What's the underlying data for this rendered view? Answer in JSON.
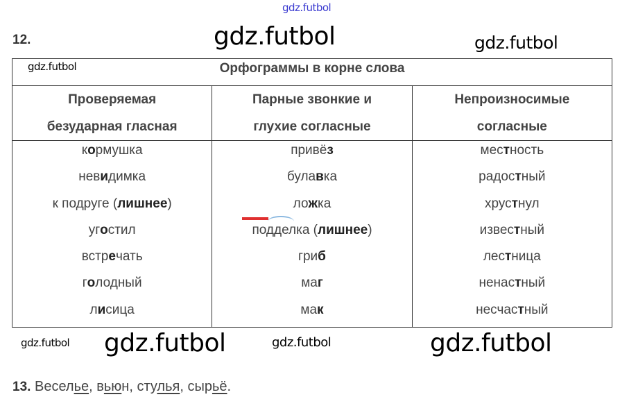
{
  "watermarks": [
    "gdz.futbol",
    "gdz.futbol",
    "gdz.futbol",
    "gdz.futbol",
    "gdz.futbol",
    "gdz.futbol",
    "gdz.futbol",
    "gdz.futbol"
  ],
  "exercise12": {
    "number": "12.",
    "table_title": "Орфограммы в корне слова",
    "headers": [
      [
        "Проверяемая",
        "безударная гласная"
      ],
      [
        "Парные звонкие и",
        "глухие согласные"
      ],
      [
        "Непроизносимые",
        "согласные"
      ]
    ],
    "columns": [
      [
        [
          {
            "t": "к"
          },
          {
            "t": "о",
            "b": true
          },
          {
            "t": "рмушка"
          }
        ],
        [
          {
            "t": "нев"
          },
          {
            "t": "и",
            "b": true
          },
          {
            "t": "димка"
          }
        ],
        [
          {
            "t": "к подруге ("
          },
          {
            "t": "лишнее",
            "b": true
          },
          {
            "t": ")"
          }
        ],
        [
          {
            "t": "уг"
          },
          {
            "t": "о",
            "b": true
          },
          {
            "t": "стил"
          }
        ],
        [
          {
            "t": "встр"
          },
          {
            "t": "е",
            "b": true
          },
          {
            "t": "чать"
          }
        ],
        [
          {
            "t": "г"
          },
          {
            "t": "о",
            "b": true
          },
          {
            "t": "лодный"
          }
        ],
        [
          {
            "t": "л"
          },
          {
            "t": "и",
            "b": true
          },
          {
            "t": "сица"
          }
        ]
      ],
      [
        [
          {
            "t": "привё"
          },
          {
            "t": "з",
            "b": true
          }
        ],
        [
          {
            "t": "була"
          },
          {
            "t": "в",
            "b": true
          },
          {
            "t": "ка"
          }
        ],
        [
          {
            "t": "ло"
          },
          {
            "t": "ж",
            "b": true
          },
          {
            "t": "ка"
          }
        ],
        [
          {
            "t": "по"
          },
          {
            "t": "дд",
            "u": true
          },
          {
            "t": "елка ("
          },
          {
            "t": "лишнее",
            "b": true
          },
          {
            "t": ")"
          }
        ],
        [
          {
            "t": "гри"
          },
          {
            "t": "б",
            "b": true
          }
        ],
        [
          {
            "t": "ма"
          },
          {
            "t": "г",
            "b": true
          }
        ],
        [
          {
            "t": "ма"
          },
          {
            "t": "к",
            "b": true
          }
        ]
      ],
      [
        [
          {
            "t": "мес"
          },
          {
            "t": "т",
            "b": true
          },
          {
            "t": "ность"
          }
        ],
        [
          {
            "t": "радос"
          },
          {
            "t": "т",
            "b": true
          },
          {
            "t": "ный"
          }
        ],
        [
          {
            "t": "хрус"
          },
          {
            "t": "т",
            "b": true
          },
          {
            "t": "нул"
          }
        ],
        [
          {
            "t": "извес"
          },
          {
            "t": "т",
            "b": true
          },
          {
            "t": "ный"
          }
        ],
        [
          {
            "t": "лес"
          },
          {
            "t": "т",
            "b": true
          },
          {
            "t": "ница"
          }
        ],
        [
          {
            "t": "ненас"
          },
          {
            "t": "т",
            "b": true
          },
          {
            "t": "ный"
          }
        ],
        [
          {
            "t": "несчас"
          },
          {
            "t": "т",
            "b": true
          },
          {
            "t": "ный"
          }
        ]
      ]
    ]
  },
  "exercise13": {
    "number": "13.",
    "segments": [
      {
        "t": " Весел"
      },
      {
        "t": "ье",
        "u": true
      },
      {
        "t": ", в"
      },
      {
        "t": "ью",
        "u": true
      },
      {
        "t": "н, сту"
      },
      {
        "t": "лья",
        "u": true
      },
      {
        "t": ", сыр"
      },
      {
        "t": "ьё",
        "u": true
      },
      {
        "t": "."
      }
    ]
  },
  "colors": {
    "text": "#444444",
    "top_watermark": "#3a3ad0",
    "marker_red": "#e03030",
    "arc_blue": "#8ab8e0"
  }
}
